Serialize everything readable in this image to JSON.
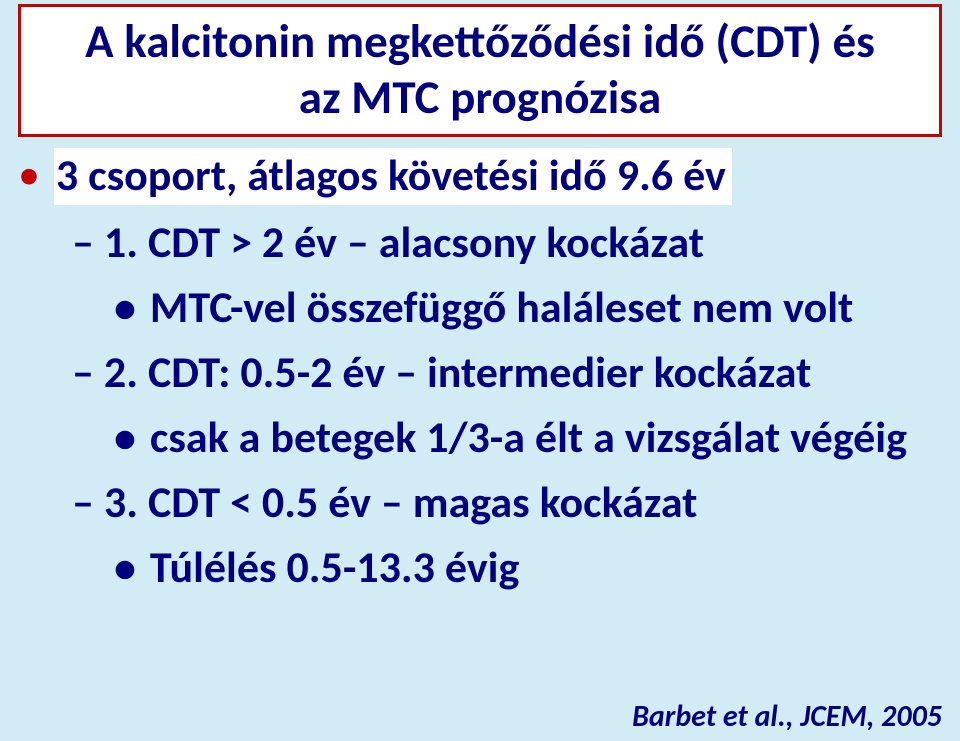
{
  "title": {
    "line1": "A kalcitonin megkettőződési idő (CDT) és",
    "line2": "az MTC prognózisa"
  },
  "bullet1": "3 csoport, átlagos követési idő 9.6 év",
  "groups": [
    {
      "num": "1.",
      "heading": "CDT > 2 év – alacsony kockázat",
      "sub": "MTC-vel összefüggő haláleset nem volt"
    },
    {
      "num": "2.",
      "heading": "CDT: 0.5-2 év – intermedier kockázat",
      "sub": "csak a betegek 1/3-a élt a vizsgálat végéig"
    },
    {
      "num": "3.",
      "heading": "CDT < 0.5 év – magas kockázat",
      "sub": "Túlélés 0.5-13.3 évig"
    }
  ],
  "citation": "Barbet et al., JCEM, 2005",
  "colors": {
    "background": "#d2ecf5",
    "text": "#01007e",
    "accent": "#c40203",
    "box_bg": "#ffffff"
  }
}
